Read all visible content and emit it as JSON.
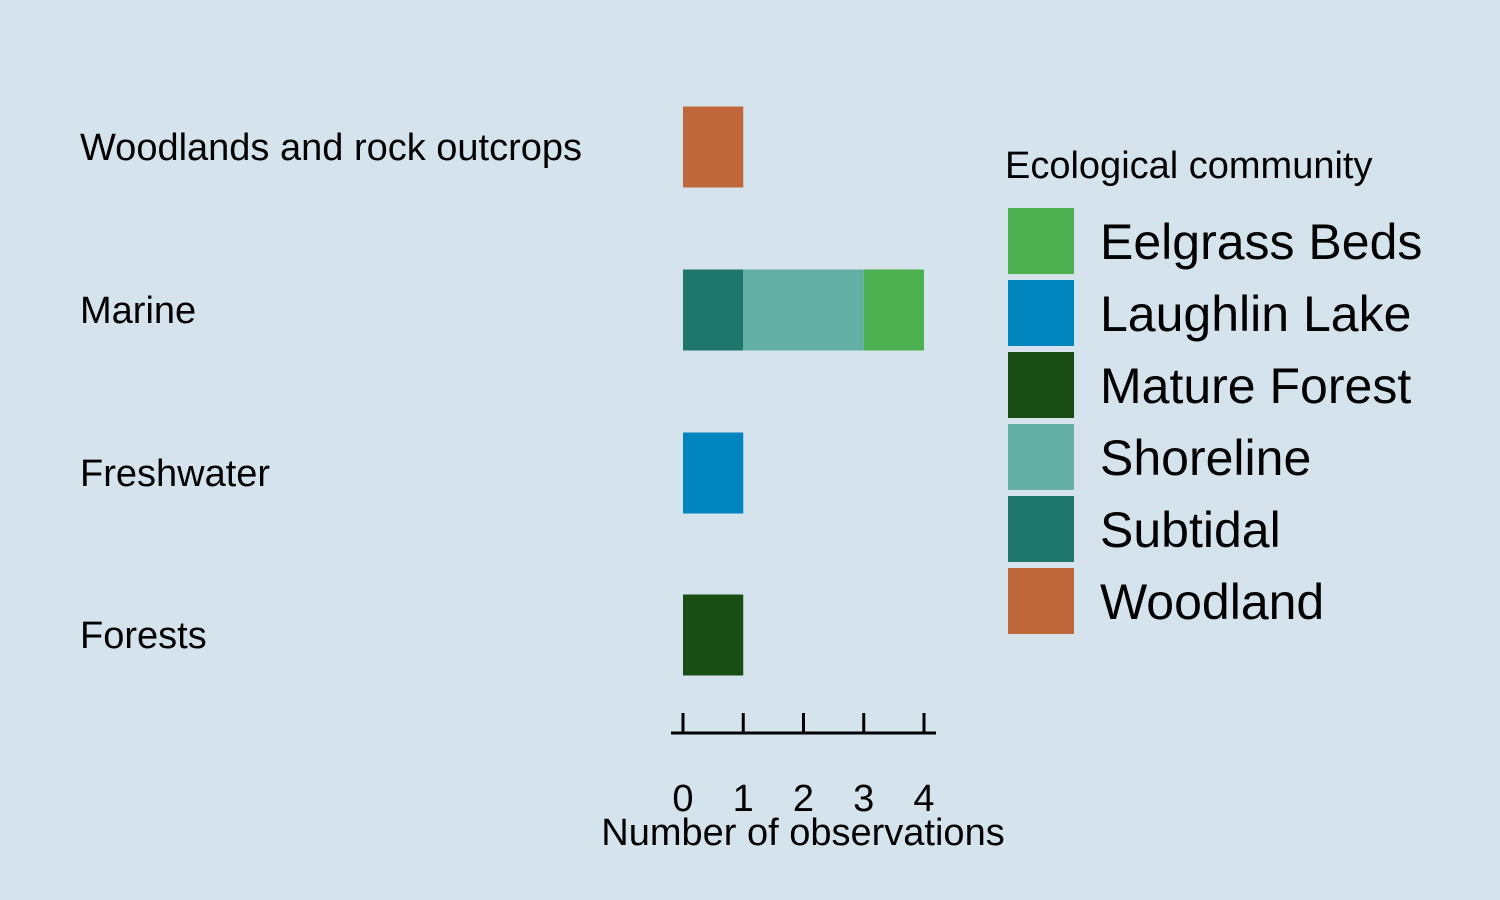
{
  "chart_data": {
    "type": "bar",
    "orientation": "horizontal",
    "stacked": true,
    "categories": [
      "Woodlands and rock outcrops",
      "Marine",
      "Freshwater",
      "Forests"
    ],
    "series": [
      {
        "name": "Eelgrass Beds",
        "color": "#4caf50",
        "values": [
          0,
          1,
          0,
          0
        ]
      },
      {
        "name": "Laughlin Lake",
        "color": "#0085be",
        "values": [
          0,
          0,
          1,
          0
        ]
      },
      {
        "name": "Mature Forest",
        "color": "#1a4d14",
        "values": [
          0,
          0,
          0,
          1
        ]
      },
      {
        "name": "Shoreline",
        "color": "#64afa3",
        "values": [
          0,
          2,
          0,
          0
        ]
      },
      {
        "name": "Subtidal",
        "color": "#1e766d",
        "values": [
          0,
          1,
          0,
          0
        ]
      },
      {
        "name": "Woodland",
        "color": "#c0673b",
        "values": [
          1,
          0,
          0,
          0
        ]
      }
    ],
    "stack_order": [
      "Subtidal",
      "Shoreline",
      "Eelgrass Beds",
      "Laughlin Lake",
      "Mature Forest",
      "Woodland"
    ],
    "xlabel": "Number of observations",
    "ylabel": "",
    "xlim": [
      0,
      4
    ],
    "xticks": [
      "0",
      "1",
      "2",
      "3",
      "4"
    ],
    "grid": false,
    "legend": {
      "title": "Ecological community",
      "position": "right"
    },
    "background": "#d5e4ec"
  }
}
